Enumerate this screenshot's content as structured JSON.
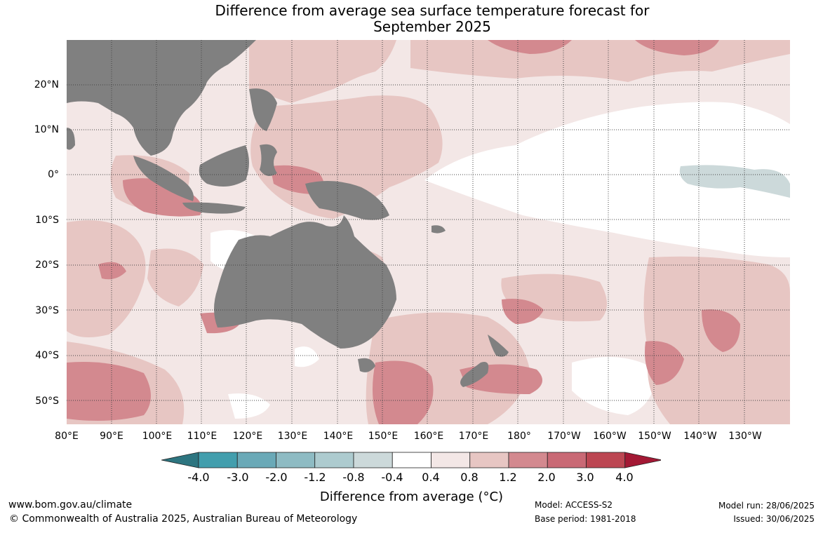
{
  "title_line1": "Difference from average sea surface temperature forecast for",
  "title_line2": "September 2025",
  "lat_labels": [
    "20°N",
    "10°N",
    "0°",
    "10°S",
    "20°S",
    "30°S",
    "40°S",
    "50°S"
  ],
  "lon_labels": [
    "80°E",
    "90°E",
    "100°E",
    "110°E",
    "120°E",
    "130°E",
    "140°E",
    "150°E",
    "160°E",
    "170°E",
    "180°",
    "170°W",
    "160°W",
    "150°W",
    "140°W",
    "130°W"
  ],
  "colorbar": {
    "ticks": [
      "-4.0",
      "-3.0",
      "-2.0",
      "-1.2",
      "-0.8",
      "-0.4",
      "0.4",
      "0.8",
      "1.2",
      "2.0",
      "3.0",
      "4.0"
    ],
    "colors": [
      "#2d7580",
      "#429ead",
      "#6aa9b7",
      "#8ebbc3",
      "#adcbcf",
      "#ccd9da",
      "#ffffff",
      "#f3e7e6",
      "#e7c6c3",
      "#d3898f",
      "#c96975",
      "#bc4652",
      "#a31834"
    ],
    "label": "Difference from average (°C)"
  },
  "colors": {
    "land": "#808080",
    "grid": "#444444"
  },
  "footer": {
    "website": "www.bom.gov.au/climate",
    "copyright": "© Commonwealth of Australia 2025, Australian Bureau of Meteorology",
    "model": "Model: ACCESS-S2",
    "base_period": "Base period: 1981-2018",
    "model_run": "Model run: 28/06/2025",
    "issued": "Issued: 30/06/2025"
  }
}
